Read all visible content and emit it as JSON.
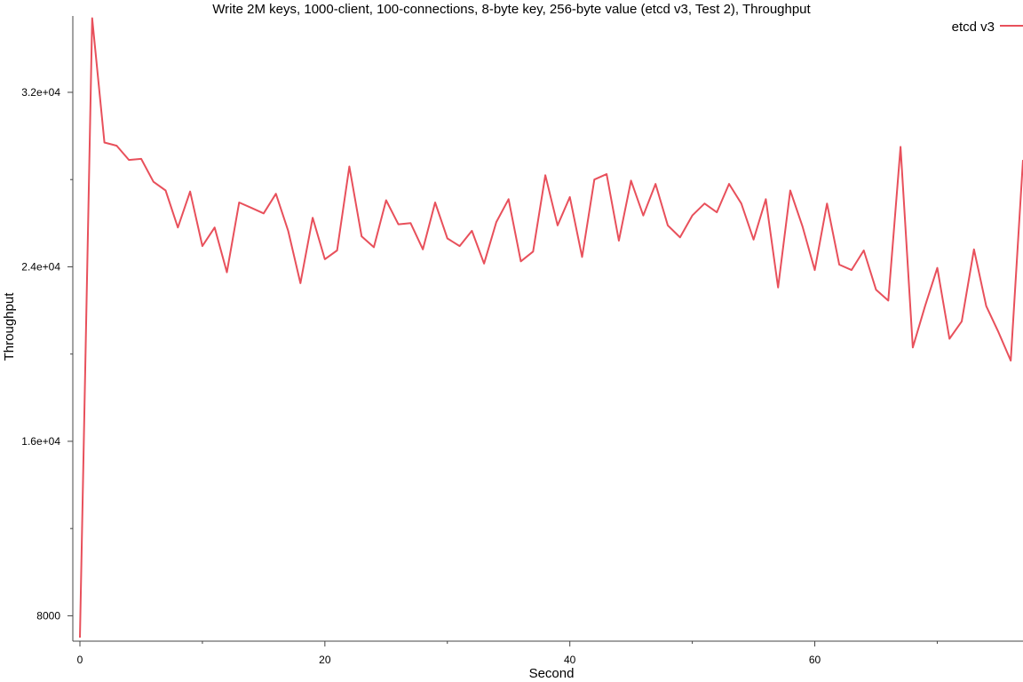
{
  "chart_data": {
    "type": "line",
    "title": "Write 2M keys, 1000-client, 100-connections, 8-byte key, 256-byte value (etcd v3, Test 2), Throughput",
    "xlabel": "Second",
    "ylabel": "Throughput",
    "xlim": [
      0,
      77
    ],
    "ylim": [
      7000,
      35500
    ],
    "x_ticks": [
      0,
      20,
      40,
      60
    ],
    "x_tick_labels": [
      "0",
      "20",
      "40",
      "60"
    ],
    "y_ticks": [
      8000,
      16000,
      24000,
      32000
    ],
    "y_tick_labels": [
      "8000",
      "1.6e+04",
      "2.4e+04",
      "3.2e+04"
    ],
    "grid": false,
    "legend_position": "top-right",
    "series": [
      {
        "name": "etcd v3",
        "color": "#e8505b",
        "x": [
          0,
          1,
          2,
          3,
          4,
          5,
          6,
          7,
          8,
          9,
          10,
          11,
          12,
          13,
          14,
          15,
          16,
          17,
          18,
          19,
          20,
          21,
          22,
          23,
          24,
          25,
          26,
          27,
          28,
          29,
          30,
          31,
          32,
          33,
          34,
          35,
          36,
          37,
          38,
          39,
          40,
          41,
          42,
          43,
          44,
          45,
          46,
          47,
          48,
          49,
          50,
          51,
          52,
          53,
          54,
          55,
          56,
          57,
          58,
          59,
          60,
          61,
          62,
          63,
          64,
          65,
          66,
          67,
          68,
          69,
          70,
          71,
          72,
          73,
          74,
          75,
          76,
          77
        ],
        "values": [
          7000,
          35400,
          29700,
          29550,
          28900,
          28950,
          27900,
          27500,
          25800,
          27450,
          24950,
          25800,
          23750,
          26950,
          26700,
          26450,
          27350,
          25650,
          23250,
          26250,
          24350,
          24750,
          28600,
          25400,
          24900,
          27050,
          25950,
          26000,
          24800,
          26950,
          25300,
          24950,
          25650,
          24150,
          26050,
          27100,
          24250,
          24700,
          28200,
          25900,
          27200,
          24450,
          28000,
          28250,
          25200,
          27950,
          26350,
          27800,
          25900,
          25350,
          26350,
          26900,
          26500,
          27800,
          26900,
          25250,
          27100,
          23050,
          27500,
          25850,
          23850,
          26900,
          24100,
          23850,
          24750,
          22950,
          22450,
          29500,
          20300,
          22200,
          23950,
          20700,
          21500,
          24800,
          22200,
          21000,
          19700,
          28900
        ]
      }
    ]
  }
}
